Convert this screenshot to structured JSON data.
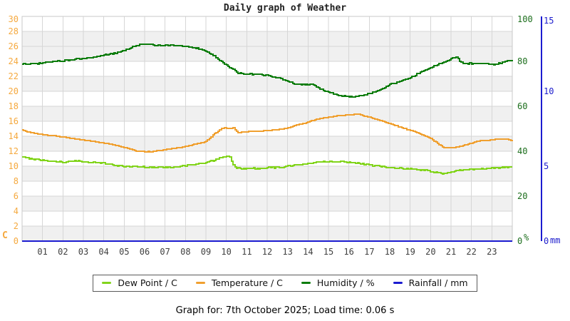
{
  "title": "Daily graph of Weather",
  "footer": "Graph for: 7th October 2025; Load time: 0.06 s",
  "colors": {
    "dew_point": "#82d41c",
    "temperature": "#f0a030",
    "humidity": "#0e7d0e",
    "rainfall": "#1c1cd0",
    "celsius_labels": "#f5a93f",
    "percent_labels": "#1c6e1c",
    "mm_labels": "#1c1ccc",
    "hour_labels": "#3f3f3f",
    "grid": "#d6d6d6",
    "band_gray": "#f0f0f0",
    "plot_border": "#c9c9c9"
  },
  "chart_data": {
    "type": "line",
    "title": "Daily graph of Weather",
    "x_axis": {
      "unit": "hour of day",
      "range": [
        0,
        24
      ],
      "hours": [
        "01",
        "02",
        "03",
        "04",
        "05",
        "06",
        "07",
        "08",
        "09",
        "10",
        "11",
        "12",
        "13",
        "14",
        "15",
        "16",
        "17",
        "18",
        "19",
        "20",
        "21",
        "22",
        "23"
      ]
    },
    "y_axes": {
      "celsius": {
        "unit": "C",
        "min": 0,
        "max": 30,
        "ticks": [
          0,
          2,
          4,
          6,
          8,
          10,
          12,
          14,
          16,
          18,
          20,
          22,
          24,
          26,
          28,
          30
        ]
      },
      "percent": {
        "unit": "%",
        "min": 0,
        "max": 100,
        "ticks": [
          0,
          20,
          40,
          60,
          80,
          100
        ]
      },
      "mm": {
        "unit": "mm",
        "min": 0,
        "max": 15,
        "ticks": [
          0,
          5,
          10,
          15
        ]
      }
    },
    "legend_position": "bottom",
    "grid": true,
    "series": [
      {
        "name": "Dew Point / C",
        "axis": "celsius",
        "color": "#82d41c",
        "points": [
          [
            0,
            11.2
          ],
          [
            0.5,
            11.0
          ],
          [
            1,
            10.8
          ],
          [
            1.5,
            10.68
          ],
          [
            2,
            10.55
          ],
          [
            2.7,
            10.68
          ],
          [
            3.2,
            10.55
          ],
          [
            4,
            10.4
          ],
          [
            4.6,
            10.1
          ],
          [
            5.2,
            9.95
          ],
          [
            6,
            9.9
          ],
          [
            7,
            9.85
          ],
          [
            7.5,
            9.95
          ],
          [
            8,
            10.1
          ],
          [
            8.5,
            10.25
          ],
          [
            9,
            10.45
          ],
          [
            9.5,
            10.9
          ],
          [
            9.8,
            11.25
          ],
          [
            10.15,
            11.3
          ],
          [
            10.3,
            10.3
          ],
          [
            10.45,
            9.75
          ],
          [
            11,
            9.7
          ],
          [
            11.6,
            9.7
          ],
          [
            12,
            9.8
          ],
          [
            12.7,
            9.85
          ],
          [
            13,
            10.0
          ],
          [
            13.5,
            10.15
          ],
          [
            14,
            10.4
          ],
          [
            14.6,
            10.55
          ],
          [
            15.3,
            10.65
          ],
          [
            16,
            10.55
          ],
          [
            16.5,
            10.4
          ],
          [
            17,
            10.15
          ],
          [
            17.6,
            9.95
          ],
          [
            18,
            9.85
          ],
          [
            18.7,
            9.7
          ],
          [
            19.3,
            9.55
          ],
          [
            19.9,
            9.4
          ],
          [
            20.35,
            9.15
          ],
          [
            20.6,
            8.95
          ],
          [
            20.85,
            9.1
          ],
          [
            21.2,
            9.4
          ],
          [
            21.7,
            9.55
          ],
          [
            22.2,
            9.62
          ],
          [
            22.8,
            9.7
          ],
          [
            23.3,
            9.8
          ],
          [
            23.8,
            9.9
          ],
          [
            24,
            9.92
          ]
        ]
      },
      {
        "name": "Temperature / C",
        "axis": "celsius",
        "color": "#f0a030",
        "points": [
          [
            0,
            14.8
          ],
          [
            0.5,
            14.45
          ],
          [
            1,
            14.2
          ],
          [
            2,
            13.9
          ],
          [
            3,
            13.5
          ],
          [
            4,
            13.1
          ],
          [
            4.5,
            12.85
          ],
          [
            5,
            12.5
          ],
          [
            5.7,
            11.95
          ],
          [
            6.3,
            11.95
          ],
          [
            7,
            12.2
          ],
          [
            8,
            12.65
          ],
          [
            9,
            13.3
          ],
          [
            9.4,
            14.3
          ],
          [
            9.8,
            15.1
          ],
          [
            10.35,
            15.1
          ],
          [
            10.55,
            14.5
          ],
          [
            11,
            14.6
          ],
          [
            11.6,
            14.7
          ],
          [
            12,
            14.75
          ],
          [
            12.5,
            14.9
          ],
          [
            13,
            15.1
          ],
          [
            13.5,
            15.55
          ],
          [
            13.9,
            15.8
          ],
          [
            14.6,
            16.4
          ],
          [
            15.2,
            16.65
          ],
          [
            16,
            16.85
          ],
          [
            16.45,
            16.95
          ],
          [
            17,
            16.55
          ],
          [
            17.5,
            16.15
          ],
          [
            18,
            15.65
          ],
          [
            18.7,
            15.05
          ],
          [
            19.3,
            14.5
          ],
          [
            19.9,
            13.85
          ],
          [
            20.3,
            13.1
          ],
          [
            20.6,
            12.55
          ],
          [
            21.1,
            12.45
          ],
          [
            21.6,
            12.8
          ],
          [
            22,
            13.1
          ],
          [
            22.4,
            13.4
          ],
          [
            23,
            13.5
          ],
          [
            23.4,
            13.65
          ],
          [
            23.7,
            13.6
          ],
          [
            24,
            13.35
          ]
        ]
      },
      {
        "name": "Humidity / %",
        "axis": "percent",
        "color": "#0e7d0e",
        "points": [
          [
            0,
            78.9
          ],
          [
            0.7,
            78.9
          ],
          [
            1,
            79.2
          ],
          [
            1.5,
            79.8
          ],
          [
            2,
            80.3
          ],
          [
            2.5,
            80.7
          ],
          [
            3,
            81.3
          ],
          [
            3.5,
            81.9
          ],
          [
            4,
            82.8
          ],
          [
            4.4,
            83.3
          ],
          [
            4.8,
            84.4
          ],
          [
            5.2,
            85.6
          ],
          [
            5.6,
            87.0
          ],
          [
            5.9,
            87.8
          ],
          [
            6.2,
            87.6
          ],
          [
            6.6,
            87.2
          ],
          [
            7.2,
            87.2
          ],
          [
            7.6,
            86.9
          ],
          [
            8,
            86.6
          ],
          [
            8.4,
            86.2
          ],
          [
            8.8,
            85.2
          ],
          [
            9.1,
            84.0
          ],
          [
            9.4,
            82.4
          ],
          [
            9.7,
            80.2
          ],
          [
            10,
            78.2
          ],
          [
            10.3,
            76.6
          ],
          [
            10.6,
            74.8
          ],
          [
            11,
            74.3
          ],
          [
            11.5,
            74.2
          ],
          [
            12,
            73.8
          ],
          [
            12.4,
            73.0
          ],
          [
            12.9,
            71.4
          ],
          [
            13.3,
            70.0
          ],
          [
            13.6,
            69.7
          ],
          [
            14.3,
            69.5
          ],
          [
            14.6,
            67.6
          ],
          [
            15,
            66.3
          ],
          [
            15.4,
            65.0
          ],
          [
            15.8,
            64.5
          ],
          [
            16.3,
            64.2
          ],
          [
            16.7,
            64.9
          ],
          [
            17.1,
            65.9
          ],
          [
            17.6,
            67.6
          ],
          [
            18,
            69.8
          ],
          [
            18.5,
            71.0
          ],
          [
            19,
            72.8
          ],
          [
            19.4,
            74.6
          ],
          [
            20,
            77.2
          ],
          [
            20.5,
            79.0
          ],
          [
            21,
            81.2
          ],
          [
            21.25,
            82.0
          ],
          [
            21.45,
            80.0
          ],
          [
            21.6,
            79.2
          ],
          [
            22,
            79.0
          ],
          [
            22.5,
            79.2
          ],
          [
            23,
            78.6
          ],
          [
            23.4,
            79.3
          ],
          [
            23.8,
            80.2
          ],
          [
            24,
            80.6
          ]
        ]
      },
      {
        "name": "Rainfall / mm",
        "axis": "mm",
        "color": "#1c1cd0",
        "points": [
          [
            0,
            0
          ],
          [
            24,
            0
          ]
        ]
      }
    ]
  }
}
